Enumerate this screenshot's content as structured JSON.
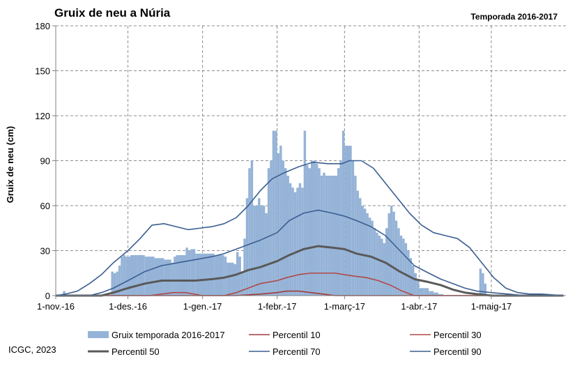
{
  "chart_data": {
    "type": "bar",
    "title": "Gruix de neu a Núria",
    "subtitle": "Temporada 2016-2017",
    "ylabel": "Gruix de neu (cm)",
    "xlabel": "",
    "ylim": [
      0,
      180
    ],
    "y_ticks": [
      0,
      30,
      60,
      90,
      120,
      150,
      180
    ],
    "x_range": [
      "2016-11-01",
      "2017-05-31"
    ],
    "x_ticks": [
      {
        "date": "2016-11-01",
        "label": "1-nov.-16"
      },
      {
        "date": "2016-12-01",
        "label": "1-des.-16"
      },
      {
        "date": "2017-01-01",
        "label": "1-gen.-17"
      },
      {
        "date": "2017-02-01",
        "label": "1-febr.-17"
      },
      {
        "date": "2017-03-01",
        "label": "1-març-17"
      },
      {
        "date": "2017-04-01",
        "label": "1-abr.-17"
      },
      {
        "date": "2017-05-01",
        "label": "1-maig-17"
      }
    ],
    "grid": true,
    "legend_position": "bottom",
    "series": [
      {
        "name": "Gruix temporada 2016-2017",
        "kind": "bar",
        "color": "#95b3d7",
        "dates": [
          "2016-11-04",
          "2016-11-24",
          "2016-11-25",
          "2016-11-26",
          "2016-11-27",
          "2016-11-28",
          "2016-11-29",
          "2016-11-30",
          "2016-12-01",
          "2016-12-02",
          "2016-12-05",
          "2016-12-08",
          "2016-12-12",
          "2016-12-16",
          "2016-12-19",
          "2016-12-20",
          "2016-12-21",
          "2016-12-22",
          "2016-12-25",
          "2016-12-26",
          "2016-12-27",
          "2016-12-29",
          "2017-01-03",
          "2017-01-06",
          "2017-01-10",
          "2017-01-11",
          "2017-01-13",
          "2017-01-14",
          "2017-01-15",
          "2017-01-16",
          "2017-01-17",
          "2017-01-18",
          "2017-01-19",
          "2017-01-20",
          "2017-01-21",
          "2017-01-22",
          "2017-01-23",
          "2017-01-24",
          "2017-01-25",
          "2017-01-26",
          "2017-01-27",
          "2017-01-28",
          "2017-01-29",
          "2017-01-30",
          "2017-01-31",
          "2017-02-01",
          "2017-02-02",
          "2017-02-03",
          "2017-02-04",
          "2017-02-05",
          "2017-02-06",
          "2017-02-07",
          "2017-02-08",
          "2017-02-09",
          "2017-02-10",
          "2017-02-11",
          "2017-02-12",
          "2017-02-13",
          "2017-02-14",
          "2017-02-15",
          "2017-02-16",
          "2017-02-17",
          "2017-02-18",
          "2017-02-19",
          "2017-02-20",
          "2017-02-21",
          "2017-02-22",
          "2017-02-23",
          "2017-02-24",
          "2017-02-25",
          "2017-02-26",
          "2017-02-27",
          "2017-02-28",
          "2017-03-01",
          "2017-03-04",
          "2017-03-05",
          "2017-03-06",
          "2017-03-07",
          "2017-03-08",
          "2017-03-09",
          "2017-03-10",
          "2017-03-11",
          "2017-03-12",
          "2017-03-13",
          "2017-03-14",
          "2017-03-15",
          "2017-03-16",
          "2017-03-17",
          "2017-03-18",
          "2017-03-19",
          "2017-03-20",
          "2017-03-21",
          "2017-03-22",
          "2017-03-23",
          "2017-03-24",
          "2017-03-25",
          "2017-03-26",
          "2017-03-27",
          "2017-03-28",
          "2017-03-29",
          "2017-03-30",
          "2017-03-31",
          "2017-04-01",
          "2017-04-03",
          "2017-04-05",
          "2017-04-07",
          "2017-04-09",
          "2017-04-11",
          "2017-04-13",
          "2017-04-26",
          "2017-04-27",
          "2017-04-28"
        ],
        "values": [
          3,
          16,
          15,
          16,
          20,
          26,
          27,
          26,
          26,
          27,
          27,
          26,
          25,
          24,
          22,
          26,
          27,
          27,
          32,
          30,
          31,
          28,
          28,
          27,
          26,
          22,
          22,
          21,
          29,
          26,
          16,
          38,
          65,
          85,
          90,
          60,
          60,
          65,
          60,
          60,
          55,
          85,
          90,
          110,
          110,
          95,
          100,
          90,
          85,
          80,
          75,
          72,
          69,
          72,
          75,
          72,
          110,
          87,
          85,
          90,
          90,
          88,
          85,
          80,
          82,
          80,
          80,
          80,
          80,
          80,
          85,
          90,
          110,
          100,
          90,
          80,
          70,
          65,
          60,
          58,
          55,
          52,
          50,
          45,
          42,
          40,
          38,
          35,
          45,
          55,
          60,
          56,
          50,
          45,
          40,
          38,
          35,
          30,
          25,
          20,
          15,
          10,
          5,
          5,
          3,
          2,
          1,
          0,
          0,
          18,
          15,
          8
        ]
      },
      {
        "name": "Percentil 10",
        "kind": "line",
        "color": "#a23a3a",
        "width": 1.6,
        "points": [
          [
            "2016-11-01",
            0
          ],
          [
            "2016-12-20",
            0
          ],
          [
            "2017-01-05",
            0
          ],
          [
            "2017-01-15",
            0
          ],
          [
            "2017-01-25",
            1
          ],
          [
            "2017-02-01",
            2
          ],
          [
            "2017-02-05",
            3
          ],
          [
            "2017-02-10",
            3
          ],
          [
            "2017-02-15",
            2
          ],
          [
            "2017-02-20",
            1
          ],
          [
            "2017-02-25",
            0
          ],
          [
            "2017-05-31",
            0
          ]
        ]
      },
      {
        "name": "Percentil 30",
        "kind": "line",
        "color": "#b04848",
        "width": 1.6,
        "points": [
          [
            "2016-11-01",
            0
          ],
          [
            "2016-12-10",
            0
          ],
          [
            "2016-12-15",
            1
          ],
          [
            "2016-12-20",
            2
          ],
          [
            "2016-12-25",
            2
          ],
          [
            "2017-01-01",
            0
          ],
          [
            "2017-01-10",
            0
          ],
          [
            "2017-01-15",
            2
          ],
          [
            "2017-01-20",
            5
          ],
          [
            "2017-01-25",
            8
          ],
          [
            "2017-02-01",
            10
          ],
          [
            "2017-02-05",
            12
          ],
          [
            "2017-02-10",
            14
          ],
          [
            "2017-02-15",
            15
          ],
          [
            "2017-02-20",
            15
          ],
          [
            "2017-02-25",
            15
          ],
          [
            "2017-03-01",
            14
          ],
          [
            "2017-03-05",
            13
          ],
          [
            "2017-03-10",
            12
          ],
          [
            "2017-03-15",
            10
          ],
          [
            "2017-03-20",
            7
          ],
          [
            "2017-03-25",
            3
          ],
          [
            "2017-03-30",
            0
          ],
          [
            "2017-05-31",
            0
          ]
        ]
      },
      {
        "name": "Percentil 50",
        "kind": "line",
        "color": "#595959",
        "width": 3,
        "points": [
          [
            "2016-11-01",
            0
          ],
          [
            "2016-11-20",
            0
          ],
          [
            "2016-11-25",
            2
          ],
          [
            "2016-12-01",
            5
          ],
          [
            "2016-12-08",
            8
          ],
          [
            "2016-12-15",
            10
          ],
          [
            "2016-12-22",
            10
          ],
          [
            "2016-12-29",
            10
          ],
          [
            "2017-01-05",
            11
          ],
          [
            "2017-01-10",
            12
          ],
          [
            "2017-01-15",
            14
          ],
          [
            "2017-01-20",
            17
          ],
          [
            "2017-01-25",
            19
          ],
          [
            "2017-02-01",
            23
          ],
          [
            "2017-02-06",
            27
          ],
          [
            "2017-02-12",
            31
          ],
          [
            "2017-02-18",
            33
          ],
          [
            "2017-02-24",
            32
          ],
          [
            "2017-03-01",
            31
          ],
          [
            "2017-03-06",
            28
          ],
          [
            "2017-03-12",
            26
          ],
          [
            "2017-03-18",
            22
          ],
          [
            "2017-03-24",
            16
          ],
          [
            "2017-03-30",
            11
          ],
          [
            "2017-04-05",
            9
          ],
          [
            "2017-04-10",
            7
          ],
          [
            "2017-04-15",
            4
          ],
          [
            "2017-04-20",
            2
          ],
          [
            "2017-04-25",
            1
          ],
          [
            "2017-05-01",
            0
          ],
          [
            "2017-05-31",
            0
          ]
        ]
      },
      {
        "name": "Percentil 70",
        "kind": "line",
        "color": "#3a5f91",
        "width": 1.6,
        "points": [
          [
            "2016-11-01",
            0
          ],
          [
            "2016-11-15",
            0
          ],
          [
            "2016-11-20",
            2
          ],
          [
            "2016-11-25",
            5
          ],
          [
            "2016-12-01",
            10
          ],
          [
            "2016-12-08",
            16
          ],
          [
            "2016-12-15",
            20
          ],
          [
            "2016-12-22",
            22
          ],
          [
            "2016-12-29",
            24
          ],
          [
            "2017-01-05",
            26
          ],
          [
            "2017-01-10",
            28
          ],
          [
            "2017-01-15",
            31
          ],
          [
            "2017-01-20",
            34
          ],
          [
            "2017-01-25",
            37
          ],
          [
            "2017-02-01",
            42
          ],
          [
            "2017-02-06",
            50
          ],
          [
            "2017-02-12",
            55
          ],
          [
            "2017-02-18",
            57
          ],
          [
            "2017-02-24",
            55
          ],
          [
            "2017-03-01",
            53
          ],
          [
            "2017-03-06",
            50
          ],
          [
            "2017-03-12",
            46
          ],
          [
            "2017-03-18",
            40
          ],
          [
            "2017-03-24",
            30
          ],
          [
            "2017-03-30",
            20
          ],
          [
            "2017-04-05",
            15
          ],
          [
            "2017-04-10",
            11
          ],
          [
            "2017-04-15",
            8
          ],
          [
            "2017-04-20",
            5
          ],
          [
            "2017-04-25",
            3
          ],
          [
            "2017-05-01",
            2
          ],
          [
            "2017-05-08",
            1
          ],
          [
            "2017-05-15",
            0
          ],
          [
            "2017-05-31",
            0
          ]
        ]
      },
      {
        "name": "Percentil 90",
        "kind": "line",
        "color": "#3a5f91",
        "width": 1.6,
        "points": [
          [
            "2016-11-01",
            0
          ],
          [
            "2016-11-05",
            1
          ],
          [
            "2016-11-10",
            3
          ],
          [
            "2016-11-15",
            8
          ],
          [
            "2016-11-20",
            14
          ],
          [
            "2016-11-25",
            22
          ],
          [
            "2016-12-01",
            30
          ],
          [
            "2016-12-06",
            38
          ],
          [
            "2016-12-11",
            47
          ],
          [
            "2016-12-16",
            48
          ],
          [
            "2016-12-21",
            46
          ],
          [
            "2016-12-26",
            44
          ],
          [
            "2016-12-31",
            45
          ],
          [
            "2017-01-05",
            46
          ],
          [
            "2017-01-10",
            48
          ],
          [
            "2017-01-15",
            52
          ],
          [
            "2017-01-20",
            60
          ],
          [
            "2017-01-25",
            70
          ],
          [
            "2017-01-30",
            78
          ],
          [
            "2017-02-04",
            82
          ],
          [
            "2017-02-10",
            86
          ],
          [
            "2017-02-16",
            89
          ],
          [
            "2017-02-22",
            88
          ],
          [
            "2017-02-28",
            88
          ],
          [
            "2017-03-03",
            90
          ],
          [
            "2017-03-08",
            90
          ],
          [
            "2017-03-13",
            85
          ],
          [
            "2017-03-18",
            75
          ],
          [
            "2017-03-23",
            65
          ],
          [
            "2017-03-28",
            55
          ],
          [
            "2017-04-02",
            47
          ],
          [
            "2017-04-07",
            42
          ],
          [
            "2017-04-12",
            40
          ],
          [
            "2017-04-17",
            38
          ],
          [
            "2017-04-22",
            32
          ],
          [
            "2017-04-27",
            22
          ],
          [
            "2017-05-02",
            12
          ],
          [
            "2017-05-07",
            5
          ],
          [
            "2017-05-12",
            2
          ],
          [
            "2017-05-17",
            1
          ],
          [
            "2017-05-22",
            1
          ],
          [
            "2017-05-31",
            0
          ]
        ]
      }
    ]
  },
  "footer": {
    "credit": "ICGC, 2023"
  }
}
